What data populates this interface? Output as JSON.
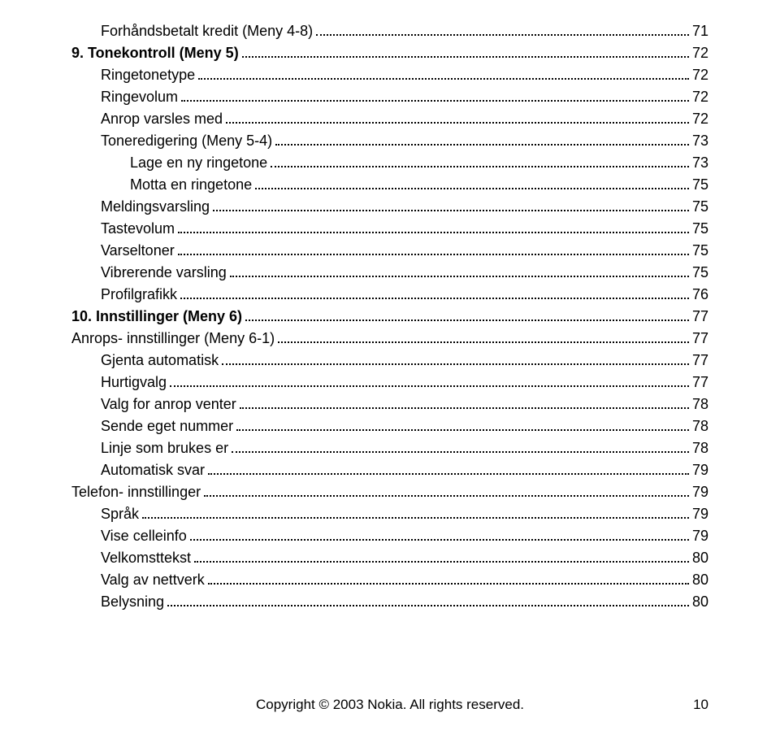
{
  "entries": [
    {
      "indent": 1,
      "heading": false,
      "label": "Forhåndsbetalt kredit (Meny 4-8)",
      "page": "71"
    },
    {
      "indent": 0,
      "heading": true,
      "label": "9. Tonekontroll (Meny 5)",
      "page": "72"
    },
    {
      "indent": 1,
      "heading": false,
      "label": "Ringetonetype",
      "page": "72"
    },
    {
      "indent": 1,
      "heading": false,
      "label": "Ringevolum",
      "page": "72"
    },
    {
      "indent": 1,
      "heading": false,
      "label": "Anrop varsles med",
      "page": "72"
    },
    {
      "indent": 1,
      "heading": false,
      "label": "Toneredigering (Meny 5-4)",
      "page": "73"
    },
    {
      "indent": 2,
      "heading": false,
      "label": "Lage en ny ringetone",
      "page": "73"
    },
    {
      "indent": 2,
      "heading": false,
      "label": "Motta en ringetone",
      "page": "75"
    },
    {
      "indent": 1,
      "heading": false,
      "label": "Meldingsvarsling",
      "page": "75"
    },
    {
      "indent": 1,
      "heading": false,
      "label": "Tastevolum",
      "page": "75"
    },
    {
      "indent": 1,
      "heading": false,
      "label": "Varseltoner",
      "page": "75"
    },
    {
      "indent": 1,
      "heading": false,
      "label": "Vibrerende varsling",
      "page": "75"
    },
    {
      "indent": 1,
      "heading": false,
      "label": "Profilgrafikk",
      "page": "76"
    },
    {
      "indent": 0,
      "heading": true,
      "label": "10. Innstillinger (Meny 6)",
      "page": "77"
    },
    {
      "indent": 0,
      "heading": false,
      "label": "Anrops- innstillinger (Meny 6-1)",
      "page": "77"
    },
    {
      "indent": 1,
      "heading": false,
      "label": "Gjenta automatisk",
      "page": "77"
    },
    {
      "indent": 1,
      "heading": false,
      "label": "Hurtigvalg",
      "page": "77"
    },
    {
      "indent": 1,
      "heading": false,
      "label": "Valg for anrop venter",
      "page": "78"
    },
    {
      "indent": 1,
      "heading": false,
      "label": "Sende eget nummer",
      "page": "78"
    },
    {
      "indent": 1,
      "heading": false,
      "label": "Linje som brukes er",
      "page": "78"
    },
    {
      "indent": 1,
      "heading": false,
      "label": "Automatisk svar",
      "page": "79"
    },
    {
      "indent": 0,
      "heading": false,
      "label": "Telefon- innstillinger",
      "page": "79"
    },
    {
      "indent": 1,
      "heading": false,
      "label": "Språk",
      "page": "79"
    },
    {
      "indent": 1,
      "heading": false,
      "label": "Vise celleinfo",
      "page": "79"
    },
    {
      "indent": 1,
      "heading": false,
      "label": "Velkomsttekst",
      "page": "80"
    },
    {
      "indent": 1,
      "heading": false,
      "label": "Valg av nettverk",
      "page": "80"
    },
    {
      "indent": 1,
      "heading": false,
      "label": "Belysning",
      "page": "80"
    }
  ],
  "footer": {
    "copyright": "Copyright © 2003 Nokia. All rights reserved.",
    "page_number": "10"
  }
}
